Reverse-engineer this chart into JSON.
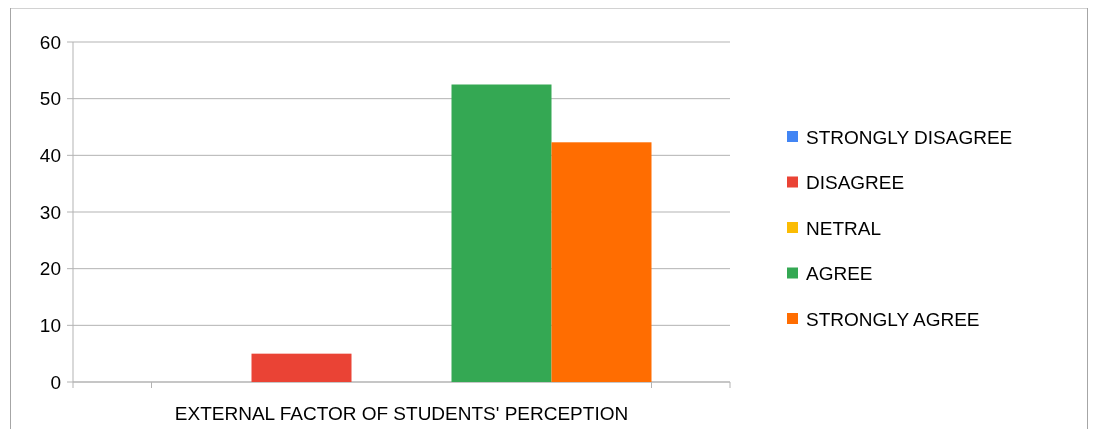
{
  "chart_data": {
    "type": "bar",
    "categories": [
      "EXTERNAL FACTOR OF STUDENTS' PERCEPTION"
    ],
    "series": [
      {
        "name": "STRONGLY DISAGREE",
        "color": "#4285f4",
        "values": [
          0
        ]
      },
      {
        "name": "DISAGREE",
        "color": "#ea4335",
        "values": [
          5
        ]
      },
      {
        "name": "NETRAL",
        "color": "#fbbc04",
        "values": [
          0
        ]
      },
      {
        "name": "AGREE",
        "color": "#34a853",
        "values": [
          52.5
        ]
      },
      {
        "name": "STRONGLY AGREE",
        "color": "#ff6d01",
        "values": [
          42.3
        ]
      }
    ],
    "ylim": [
      0,
      60
    ],
    "yticks": [
      0,
      10,
      20,
      30,
      40,
      50,
      60
    ],
    "grid": "y",
    "legend": "right"
  }
}
